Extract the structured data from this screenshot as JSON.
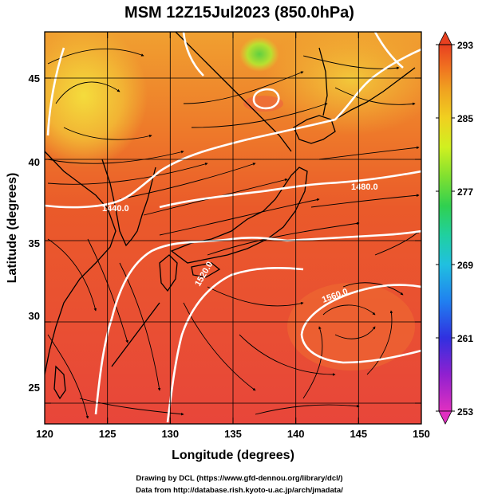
{
  "title": "MSM 12Z15Jul2023 (850.0hPa)",
  "xlabel": "Longitude (degrees)",
  "ylabel": "Latitude  (degrees)",
  "footer": {
    "line1": "Drawing by DCL (https://www.gfd-dennou.org/library/dcl/)",
    "line2": "Data from http://database.rish.kyoto-u.ac.jp/arch/jmadata/"
  },
  "map": {
    "xlim": [
      120,
      150
    ],
    "ylim": [
      22.5,
      47.5
    ],
    "xticks": [
      "120",
      "125",
      "130",
      "135",
      "140",
      "145",
      "150"
    ],
    "yticks": [
      "25",
      "30",
      "35",
      "40",
      "45"
    ],
    "contour_labels": [
      "1440.0",
      "1480.0",
      "1520.0",
      "1560.0"
    ],
    "field": "temperature (colour shading), geopotential height (white contours), wind (streamlines)"
  },
  "colorbar": {
    "min": 253,
    "max": 293,
    "tick_labels": [
      "293",
      "285",
      "277",
      "269",
      "261",
      "253"
    ],
    "colors": [
      "#e030c0",
      "#9020d0",
      "#3030e0",
      "#2080f0",
      "#20c0e0",
      "#20d0a0",
      "#30d050",
      "#80e030",
      "#d0f020",
      "#f0d020",
      "#f0a020",
      "#f07020",
      "#e84020"
    ]
  }
}
